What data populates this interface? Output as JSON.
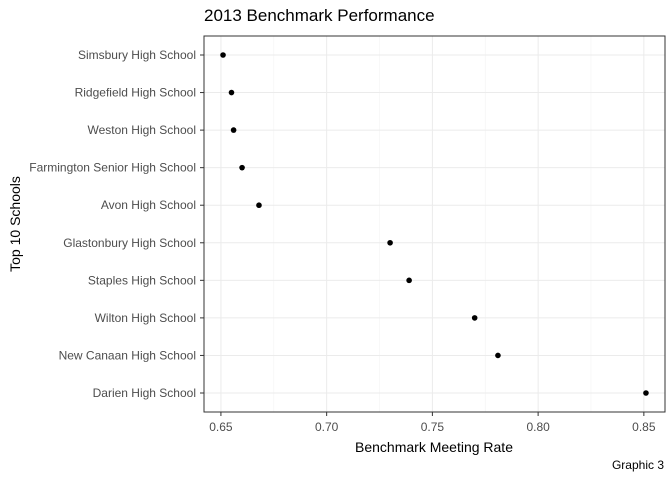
{
  "chart_data": {
    "type": "scatter",
    "title": "2013 Benchmark Performance",
    "xlabel": "Benchmark Meeting Rate",
    "ylabel": "Top 10 Schools",
    "caption": "Graphic 3",
    "xlim": [
      0.642,
      0.86
    ],
    "xticks": [
      0.65,
      0.7,
      0.75,
      0.8,
      0.85
    ],
    "xtick_labels": [
      "0.65",
      "0.70",
      "0.75",
      "0.80",
      "0.85"
    ],
    "grid": true,
    "categories": [
      "Simsbury High School",
      "Ridgefield High School",
      "Weston High School",
      "Farmington Senior High School",
      "Avon High School",
      "Glastonbury High School",
      "Staples High School",
      "Wilton High School",
      "New Canaan High School",
      "Darien High School"
    ],
    "values": [
      0.651,
      0.655,
      0.656,
      0.66,
      0.668,
      0.73,
      0.739,
      0.77,
      0.781,
      0.851
    ]
  }
}
